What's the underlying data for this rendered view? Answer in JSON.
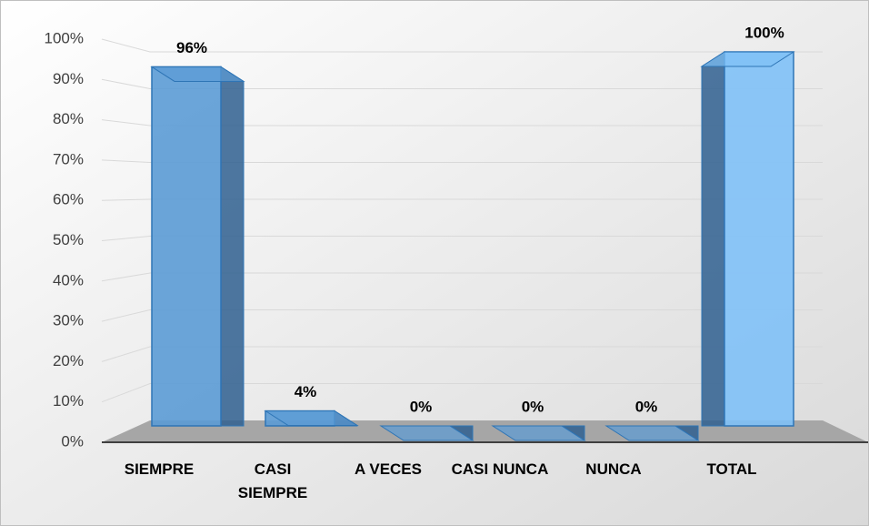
{
  "chart_data": {
    "type": "bar",
    "categories": [
      "SIEMPRE",
      "CASI SIEMPRE",
      "A VECES",
      "CASI NUNCA",
      "NUNCA",
      "TOTAL"
    ],
    "values": [
      96,
      4,
      0,
      0,
      0,
      100
    ],
    "value_labels": [
      "96%",
      "4%",
      "0%",
      "0%",
      "0%",
      "100%"
    ],
    "colors": [
      "#5b9bd5",
      "#5b9bd5",
      "#5b9bd5",
      "#5b9bd5",
      "#5b9bd5",
      "#7fc1f7"
    ],
    "ylim": [
      0,
      100
    ],
    "yticks": [
      {
        "value": 0,
        "label": "0%"
      },
      {
        "value": 10,
        "label": "10%"
      },
      {
        "value": 20,
        "label": "20%"
      },
      {
        "value": 30,
        "label": "30%"
      },
      {
        "value": 40,
        "label": "40%"
      },
      {
        "value": 50,
        "label": "50%"
      },
      {
        "value": 60,
        "label": "60%"
      },
      {
        "value": 70,
        "label": "70%"
      },
      {
        "value": 80,
        "label": "80%"
      },
      {
        "value": 90,
        "label": "90%"
      },
      {
        "value": 100,
        "label": "100%"
      }
    ],
    "grid": true
  }
}
